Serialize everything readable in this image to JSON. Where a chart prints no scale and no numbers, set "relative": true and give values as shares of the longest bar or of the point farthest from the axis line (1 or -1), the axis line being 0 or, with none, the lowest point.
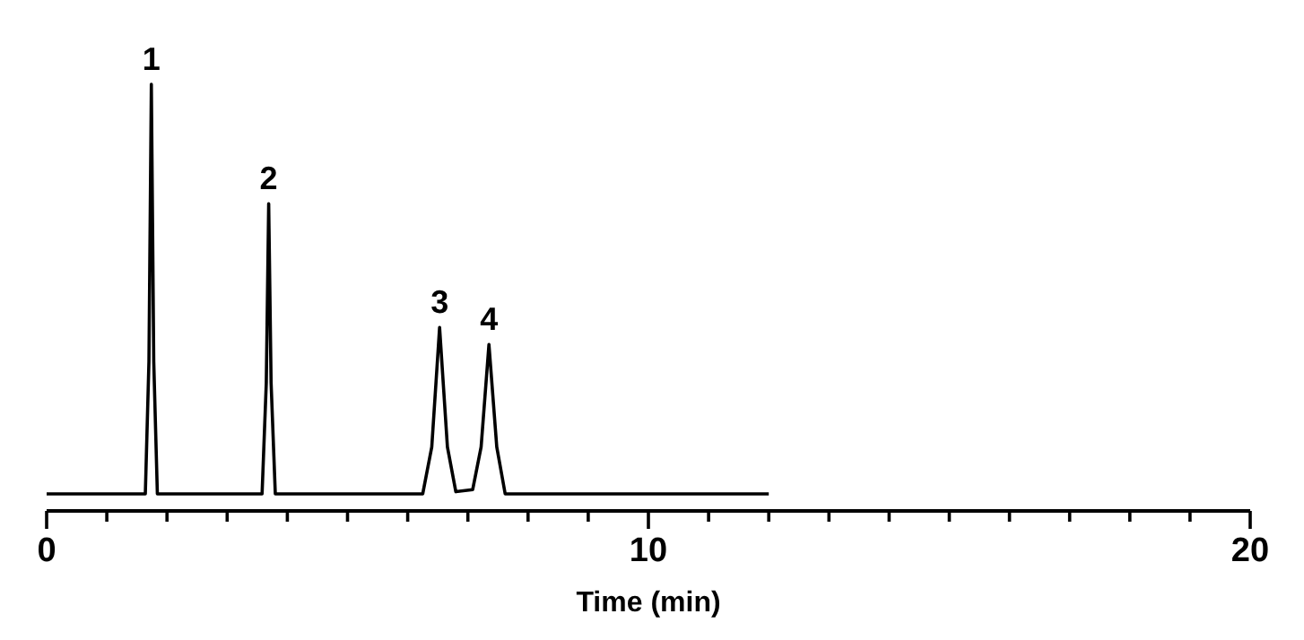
{
  "chart_data": {
    "type": "line",
    "relative": true,
    "xlabel": "Time (min)",
    "xlim": [
      0,
      20
    ],
    "xticks": [
      0,
      {
        "value": 1,
        "label": null
      },
      {
        "value": 2,
        "label": null
      },
      {
        "value": 3,
        "label": null
      },
      {
        "value": 4,
        "label": null
      },
      {
        "value": 5,
        "label": null
      },
      {
        "value": 6,
        "label": null
      },
      {
        "value": 7,
        "label": null
      },
      {
        "value": 8,
        "label": null
      },
      {
        "value": 9,
        "label": null
      },
      10,
      {
        "value": 11,
        "label": null
      },
      {
        "value": 12,
        "label": null
      },
      {
        "value": 13,
        "label": null
      },
      {
        "value": 14,
        "label": null
      },
      {
        "value": 15,
        "label": null
      },
      {
        "value": 16,
        "label": null
      },
      {
        "value": 17,
        "label": null
      },
      {
        "value": 18,
        "label": null
      },
      {
        "value": 19,
        "label": null
      },
      20
    ],
    "tick_labels": "x",
    "grid": false,
    "marker": "none",
    "line_style": "solid",
    "series": [
      {
        "color": "#000000",
        "x": [
          0,
          1.64,
          1.7,
          1.74,
          1.78,
          1.84,
          3.58,
          3.65,
          3.69,
          3.73,
          3.8,
          6.25,
          6.4,
          6.53,
          6.66,
          6.8,
          7.08,
          7.22,
          7.35,
          7.48,
          7.62,
          12
        ],
        "values": [
          0.04,
          0.04,
          0.35,
          1,
          0.35,
          0.04,
          0.04,
          0.3,
          0.72,
          0.3,
          0.04,
          0.04,
          0.15,
          0.43,
          0.15,
          0.045,
          0.05,
          0.15,
          0.39,
          0.15,
          0.04,
          0.04
        ]
      }
    ],
    "annotations": [
      {
        "text": "1",
        "x": 1.74,
        "y": 1
      },
      {
        "text": "2",
        "x": 3.69,
        "y": 0.72
      },
      {
        "text": "3",
        "x": 6.53,
        "y": 0.43
      },
      {
        "text": "4",
        "x": 7.35,
        "y": 0.39
      }
    ]
  }
}
